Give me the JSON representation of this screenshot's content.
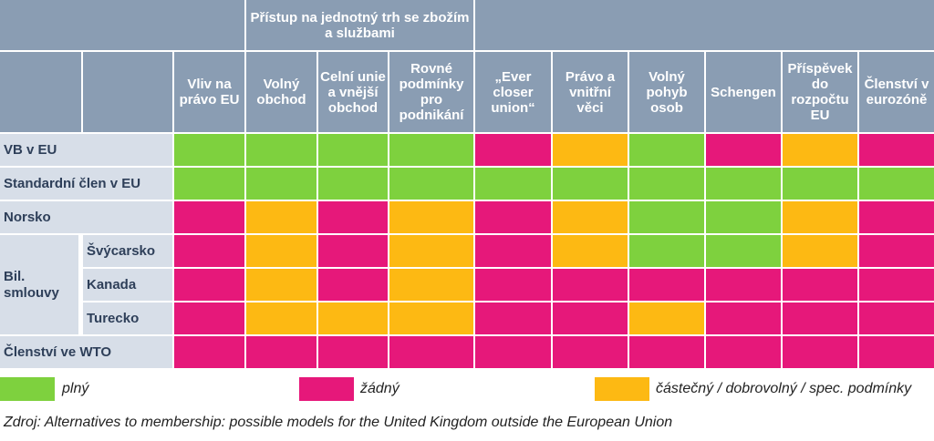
{
  "chart_data": {
    "type": "table",
    "group_header": "Přístup na jednotný trh se zbožím a službami",
    "columns": [
      "Vliv na právo EU",
      "Volný obchod",
      "Celní unie a vnější obchod",
      "Rovné podmínky pro podnikání",
      "„Ever closer union“",
      "Právo a vnitřní věci",
      "Volný pohyb osob",
      "Schengen",
      "Příspěvek do rozpočtu EU",
      "Členství v eurozóně"
    ],
    "rows": [
      {
        "label": "VB v EU",
        "values": [
          "plný",
          "plný",
          "plný",
          "plný",
          "žádný",
          "částečný",
          "plný",
          "žádný",
          "částečný",
          "žádný"
        ]
      },
      {
        "label": "Standardní člen v EU",
        "values": [
          "plný",
          "plný",
          "plný",
          "plný",
          "plný",
          "plný",
          "plný",
          "plný",
          "plný",
          "plný"
        ]
      },
      {
        "label": "Norsko",
        "values": [
          "žádný",
          "částečný",
          "žádný",
          "částečný",
          "žádný",
          "částečný",
          "plný",
          "plný",
          "částečný",
          "žádný"
        ]
      },
      {
        "label": "Švýcarsko",
        "values": [
          "žádný",
          "částečný",
          "žádný",
          "částečný",
          "žádný",
          "částečný",
          "plný",
          "plný",
          "částečný",
          "žádný"
        ]
      },
      {
        "label": "Kanada",
        "values": [
          "žádný",
          "částečný",
          "žádný",
          "částečný",
          "žádný",
          "žádný",
          "žádný",
          "žádný",
          "žádný",
          "žádný"
        ]
      },
      {
        "label": "Turecko",
        "values": [
          "žádný",
          "částečný",
          "částečný",
          "částečný",
          "žádný",
          "žádný",
          "částečný",
          "žádný",
          "žádný",
          "žádný"
        ]
      },
      {
        "label": "Členství ve WTO",
        "values": [
          "žádný",
          "žádný",
          "žádný",
          "žádný",
          "žádný",
          "žádný",
          "žádný",
          "žádný",
          "žádný",
          "žádný"
        ]
      }
    ],
    "group_label": "Bil. smlouvy",
    "legend": [
      {
        "key": "plný",
        "label": "plný",
        "color": "#7ed13e"
      },
      {
        "key": "žádný",
        "label": "žádný",
        "color": "#e6187a"
      },
      {
        "key": "částečný",
        "label": "částečný / dobrovolný / spec. podmínky",
        "color": "#fdb913"
      }
    ],
    "source": "Zdroj: Alternatives to membership: possible models for the United Kingdom outside the European Union"
  }
}
